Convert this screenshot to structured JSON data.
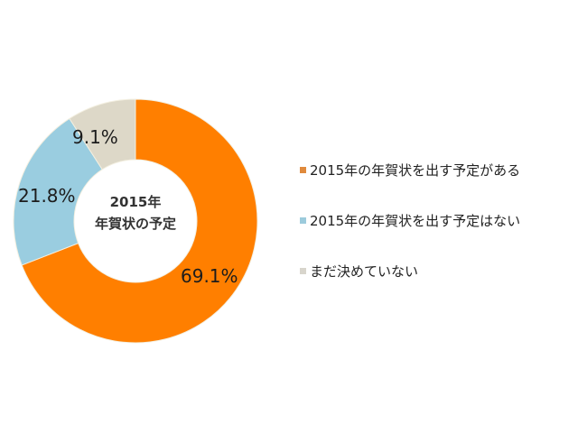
{
  "chart_data": {
    "type": "pie",
    "variant": "donut",
    "title": "2015年 年賀状の予定",
    "categories": [
      "2015年の年賀状を出す予定がある",
      "2015年の年賀状を出す予定はない",
      "まだ決めていない"
    ],
    "values": [
      69.1,
      21.8,
      9.1
    ],
    "unit": "%",
    "colors": [
      "#ff7f00",
      "#9acde0",
      "#ddd8c8"
    ],
    "data_labels": [
      "69.1%",
      "21.8%",
      "9.1%"
    ],
    "center_text": [
      "2015年",
      "年賀状の予定"
    ],
    "legend_position": "right",
    "start_angle_deg": 0,
    "direction": "clockwise"
  },
  "center": {
    "line1": "2015年",
    "line2": "年賀状の予定"
  },
  "labels": {
    "yes": "69.1%",
    "no": "21.8%",
    "undecided": "9.1%"
  },
  "legend": {
    "items": [
      {
        "label": "2015年の年賀状を出す予定がある",
        "color": "#e08a3c"
      },
      {
        "label": "2015年の年賀状を出す予定はない",
        "color": "#9ccbdc"
      },
      {
        "label": "まだ決めていない",
        "color": "#d8d5cc"
      }
    ]
  }
}
